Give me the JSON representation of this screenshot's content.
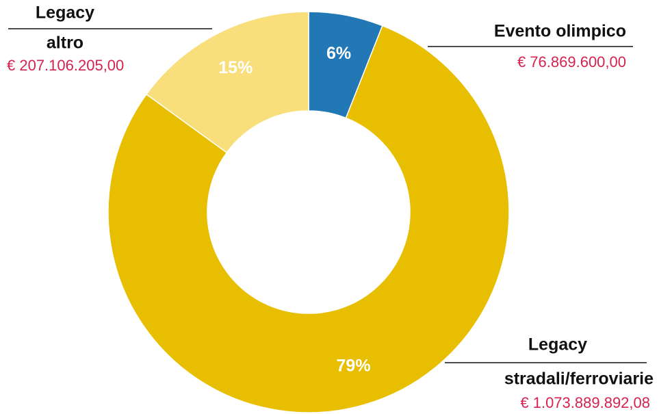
{
  "chart_data": {
    "type": "donut",
    "labels": [
      [
        "Evento olimpico"
      ],
      [
        "Legacy",
        "stradali/ferroviarie"
      ],
      [
        "Legacy",
        "altro"
      ]
    ],
    "values": [
      6,
      79,
      15
    ],
    "value_labels": [
      "6%",
      "79%",
      "15%"
    ],
    "amount_labels": [
      "€ 76.869.600,00",
      "€ 1.073.889.892,08",
      "€ 207.106.205,00"
    ],
    "colors": [
      "#2277b5",
      "#e8be00",
      "#f8df7b"
    ]
  }
}
